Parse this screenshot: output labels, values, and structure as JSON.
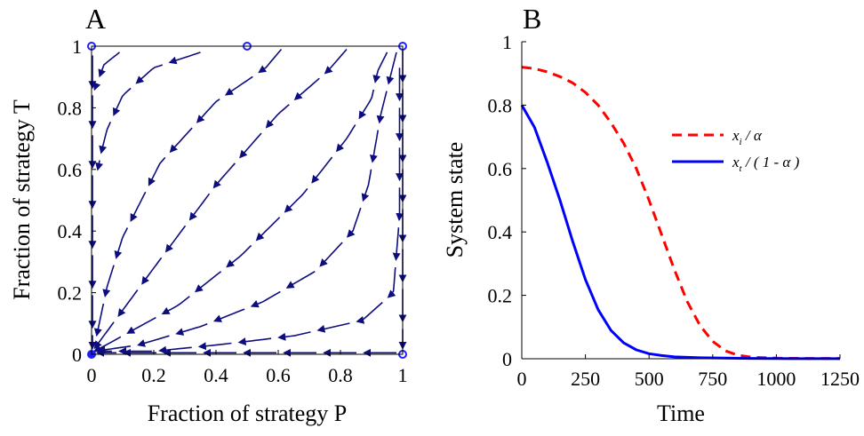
{
  "chart_data": [
    {
      "panel": "A",
      "type": "vector-field",
      "xlabel": "Fraction of strategy P",
      "ylabel": "Fraction of strategy T",
      "xlim": [
        0,
        1
      ],
      "ylim": [
        0,
        1
      ],
      "x_ticks": [
        "0",
        "0.2",
        "0.4",
        "0.6",
        "0.8",
        "1"
      ],
      "y_ticks": [
        "0",
        "0.2",
        "0.4",
        "0.6",
        "0.8",
        "1"
      ],
      "grid": false,
      "arrow_color": "#0d0d80",
      "point_color": "#1f1fff",
      "stable_points": [
        {
          "x": 0,
          "y": 0
        }
      ],
      "unstable_points": [
        {
          "x": 0,
          "y": 1
        },
        {
          "x": 0.5,
          "y": 1
        },
        {
          "x": 1,
          "y": 1
        },
        {
          "x": 1,
          "y": 0
        }
      ],
      "trajectories": [
        [
          [
            0.09,
            0.98
          ],
          [
            0.04,
            0.94
          ],
          [
            0.01,
            0.86
          ]
        ],
        [
          [
            0.35,
            0.98
          ],
          [
            0.2,
            0.93
          ],
          [
            0.1,
            0.84
          ],
          [
            0.05,
            0.73
          ],
          [
            0.03,
            0.65
          ],
          [
            0.02,
            0.6
          ]
        ],
        [
          [
            0.61,
            0.99
          ],
          [
            0.56,
            0.93
          ],
          [
            0.4,
            0.82
          ],
          [
            0.22,
            0.62
          ],
          [
            0.1,
            0.38
          ],
          [
            0.05,
            0.22
          ],
          [
            0.01,
            0.03
          ]
        ],
        [
          [
            0.82,
            0.99
          ],
          [
            0.76,
            0.92
          ],
          [
            0.6,
            0.78
          ],
          [
            0.4,
            0.55
          ],
          [
            0.2,
            0.28
          ],
          [
            0.01,
            0.02
          ]
        ],
        [
          [
            0.95,
            0.98
          ],
          [
            0.92,
            0.92
          ],
          [
            0.9,
            0.83
          ],
          [
            0.82,
            0.7
          ],
          [
            0.68,
            0.52
          ],
          [
            0.48,
            0.32
          ],
          [
            0.28,
            0.16
          ],
          [
            0.1,
            0.06
          ],
          [
            0.01,
            0.01
          ]
        ],
        [
          [
            0.98,
            0.98
          ],
          [
            0.96,
            0.9
          ],
          [
            0.93,
            0.78
          ],
          [
            0.89,
            0.55
          ],
          [
            0.84,
            0.4
          ],
          [
            0.72,
            0.27
          ],
          [
            0.55,
            0.17
          ],
          [
            0.35,
            0.09
          ],
          [
            0.15,
            0.03
          ],
          [
            0.01,
            0.01
          ]
        ],
        [
          [
            0.99,
            0.93
          ],
          [
            0.99,
            0.45
          ],
          [
            0.97,
            0.2
          ],
          [
            0.87,
            0.11
          ],
          [
            0.65,
            0.06
          ],
          [
            0.4,
            0.03
          ],
          [
            0.2,
            0.01
          ],
          [
            0.02,
            0.01
          ]
        ],
        [
          [
            0.003,
            0.97
          ],
          [
            0.003,
            0.02
          ]
        ],
        [
          [
            0.98,
            0.005
          ],
          [
            0.02,
            0.005
          ]
        ],
        [
          [
            1.0,
            0.99
          ],
          [
            1.0,
            0.02
          ]
        ]
      ]
    },
    {
      "panel": "B",
      "type": "line",
      "xlabel": "Time",
      "ylabel": "System state",
      "xlim": [
        0,
        1250
      ],
      "ylim": [
        0,
        1
      ],
      "x_ticks": [
        "0",
        "250",
        "500",
        "750",
        "1000",
        "1250"
      ],
      "y_ticks": [
        "0",
        "0.2",
        "0.4",
        "0.6",
        "0.8",
        "1"
      ],
      "grid": false,
      "legend_position": "top-right",
      "series": [
        {
          "name": "x_i / α",
          "color": "#ff0000",
          "dash": "dashed",
          "x": [
            0,
            50,
            100,
            150,
            200,
            250,
            300,
            350,
            400,
            450,
            500,
            550,
            600,
            650,
            700,
            750,
            800,
            850,
            900,
            1000,
            1100,
            1250
          ],
          "y": [
            0.92,
            0.915,
            0.905,
            0.89,
            0.87,
            0.84,
            0.8,
            0.745,
            0.68,
            0.6,
            0.5,
            0.39,
            0.28,
            0.18,
            0.105,
            0.055,
            0.025,
            0.011,
            0.005,
            0.002,
            0.001,
            0.001
          ]
        },
        {
          "name": "x_t / (1 - α)",
          "color": "#0000ff",
          "dash": "solid",
          "x": [
            0,
            50,
            100,
            150,
            200,
            250,
            300,
            350,
            400,
            450,
            500,
            550,
            600,
            700,
            800,
            900,
            1000,
            1250
          ],
          "y": [
            0.8,
            0.73,
            0.62,
            0.5,
            0.37,
            0.25,
            0.155,
            0.09,
            0.05,
            0.028,
            0.016,
            0.01,
            0.006,
            0.003,
            0.002,
            0.001,
            0.0005,
            0.0002
          ]
        }
      ]
    }
  ],
  "legend": {
    "entry1": {
      "var": "x",
      "sub": "i",
      "rest": " / α"
    },
    "entry2": {
      "var": "x",
      "sub": "t",
      "rest": " / ( 1 - α )"
    }
  }
}
